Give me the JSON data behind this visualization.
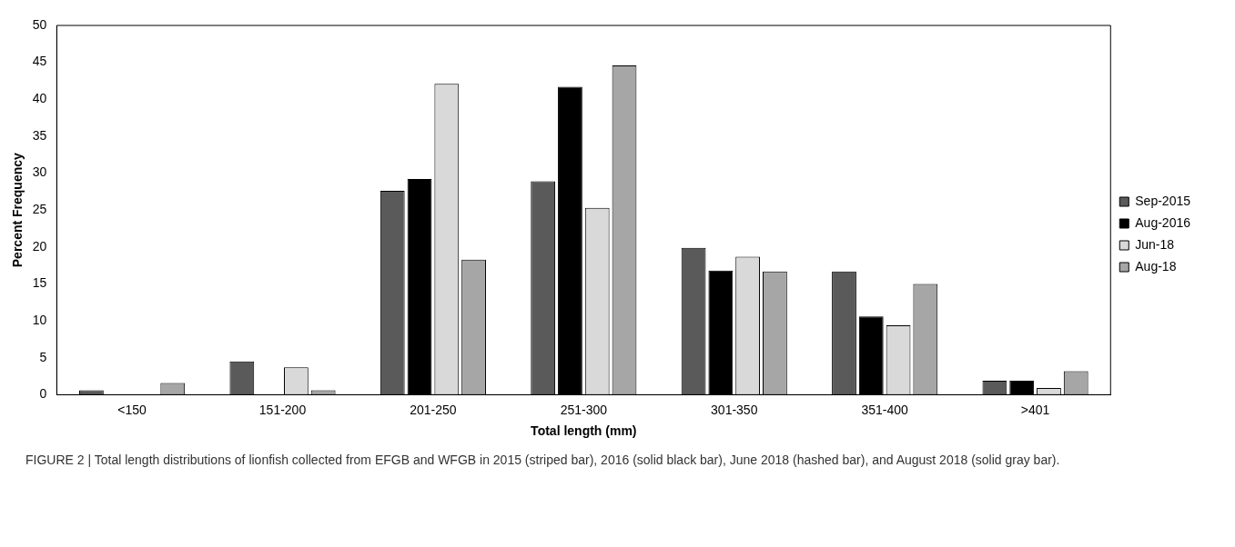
{
  "chart_data": {
    "type": "bar",
    "xlabel": "Total length (mm)",
    "ylabel": "Percent Frequency",
    "categories": [
      "<150",
      "151-200",
      "201-250",
      "251-300",
      "301-350",
      "351-400",
      ">401"
    ],
    "series": [
      {
        "name": "Sep-2015",
        "color": "#5a5a5a",
        "values": [
          0.6,
          4.5,
          27.6,
          28.9,
          19.9,
          16.7,
          1.9
        ]
      },
      {
        "name": "Aug-2016",
        "color": "#000000",
        "values": [
          0,
          0,
          29.2,
          41.7,
          16.8,
          10.6,
          1.9
        ]
      },
      {
        "name": "Jun-18",
        "color": "#d9d9d9",
        "values": [
          0,
          3.7,
          42.1,
          25.3,
          18.7,
          9.4,
          0.9
        ]
      },
      {
        "name": "Aug-18",
        "color": "#a6a6a6",
        "values": [
          1.6,
          0.6,
          18.3,
          44.6,
          16.7,
          15.0,
          3.2
        ]
      }
    ],
    "ylim": [
      0,
      50
    ],
    "yticks": [
      0,
      5,
      10,
      15,
      20,
      25,
      30,
      35,
      40,
      45,
      50
    ],
    "grid": false,
    "legend": "right",
    "annotations": [
      "FIGURE 2 | Total length distributions of lionfish collected from EFGB and WFGB in 2015 (striped bar), 2016 (solid black bar), June 2018 (hashed bar), and August 2018 (solid gray bar)."
    ]
  }
}
